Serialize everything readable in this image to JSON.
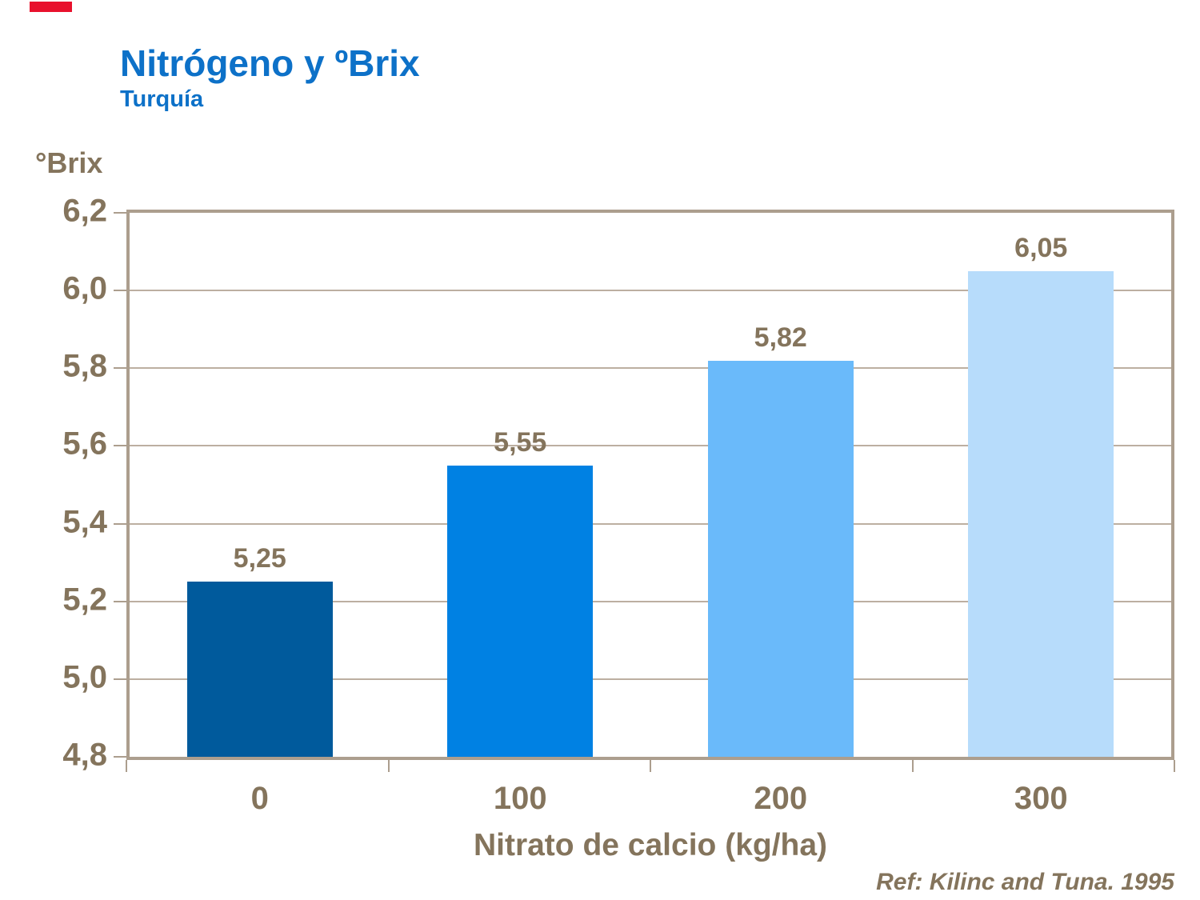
{
  "slide": {
    "title": "Nitrógeno y ºBrix",
    "subtitle": "Turquía",
    "reference": "Ref: Kilinc and Tuna. 1995",
    "title_color": "#0D71C8",
    "text_color": "#84745C",
    "accent_red": "#E8112D",
    "frame_color": "#AC9E8E",
    "gridline_color": "#BCAFA1"
  },
  "chart_data": {
    "type": "bar",
    "title": "Nitrógeno y ºBrix",
    "subtitle": "Turquía",
    "ylabel": "°Brix",
    "xlabel": "Nitrato de calcio (kg/ha)",
    "categories": [
      "0",
      "100",
      "200",
      "300"
    ],
    "values": [
      5.25,
      5.55,
      5.82,
      6.05
    ],
    "value_labels": [
      "5,25",
      "5,55",
      "5,82",
      "6,05"
    ],
    "bar_colors": [
      "#005A9C",
      "#0081E3",
      "#6ABAFA",
      "#B7DCFB"
    ],
    "ylim": [
      4.8,
      6.2
    ],
    "yticks": [
      4.8,
      5.0,
      5.2,
      5.4,
      5.6,
      5.8,
      6.0,
      6.2
    ],
    "ytick_labels": [
      "4,8",
      "5,0",
      "5,2",
      "5,4",
      "5,6",
      "5,8",
      "6,0",
      "6,2"
    ],
    "grid": "horizontal-only",
    "legend": "none",
    "annotation": "Ref: Kilinc and Tuna. 1995"
  }
}
